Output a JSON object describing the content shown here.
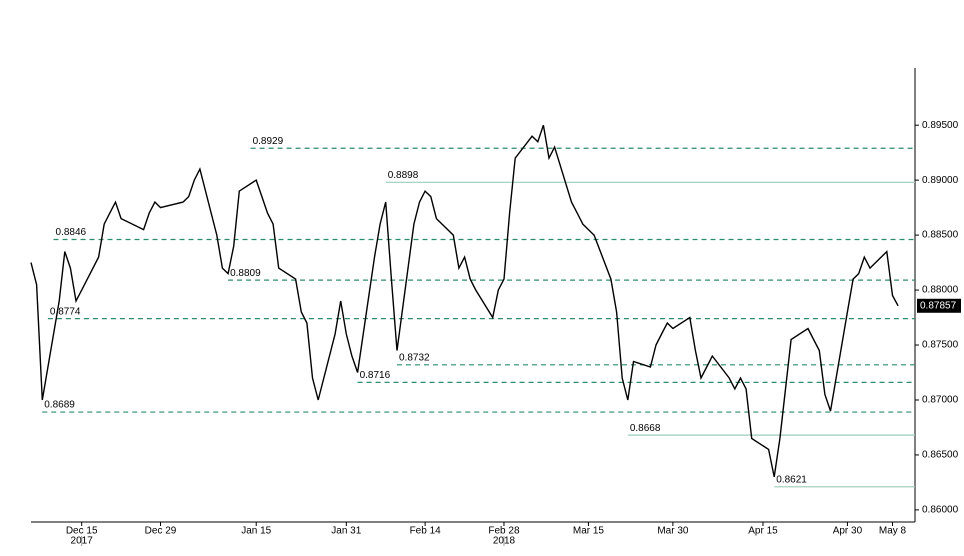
{
  "chart_data": {
    "type": "line",
    "series": [
      {
        "color": "#000000",
        "x": [
          "2017-12-06",
          "2017-12-07",
          "2017-12-08",
          "2017-12-11",
          "2017-12-12",
          "2017-12-13",
          "2017-12-14",
          "2017-12-15",
          "2017-12-18",
          "2017-12-19",
          "2017-12-20",
          "2017-12-21",
          "2017-12-22",
          "2017-12-26",
          "2017-12-27",
          "2017-12-28",
          "2017-12-29",
          "2018-01-02",
          "2018-01-03",
          "2018-01-04",
          "2018-01-05",
          "2018-01-08",
          "2018-01-09",
          "2018-01-10",
          "2018-01-11",
          "2018-01-12",
          "2018-01-15",
          "2018-01-16",
          "2018-01-17",
          "2018-01-18",
          "2018-01-19",
          "2018-01-22",
          "2018-01-23",
          "2018-01-24",
          "2018-01-25",
          "2018-01-26",
          "2018-01-29",
          "2018-01-30",
          "2018-01-31",
          "2018-02-01",
          "2018-02-02",
          "2018-02-05",
          "2018-02-06",
          "2018-02-07",
          "2018-02-08",
          "2018-02-09",
          "2018-02-12",
          "2018-02-13",
          "2018-02-14",
          "2018-02-15",
          "2018-02-16",
          "2018-02-19",
          "2018-02-20",
          "2018-02-21",
          "2018-02-22",
          "2018-02-23",
          "2018-02-26",
          "2018-02-27",
          "2018-02-28",
          "2018-03-01",
          "2018-03-02",
          "2018-03-05",
          "2018-03-06",
          "2018-03-07",
          "2018-03-08",
          "2018-03-09",
          "2018-03-12",
          "2018-03-13",
          "2018-03-14",
          "2018-03-15",
          "2018-03-16",
          "2018-03-19",
          "2018-03-20",
          "2018-03-21",
          "2018-03-22",
          "2018-03-23",
          "2018-03-26",
          "2018-03-27",
          "2018-03-28",
          "2018-03-29",
          "2018-03-30",
          "2018-04-02",
          "2018-04-03",
          "2018-04-04",
          "2018-04-05",
          "2018-04-06",
          "2018-04-09",
          "2018-04-10",
          "2018-04-11",
          "2018-04-12",
          "2018-04-13",
          "2018-04-16",
          "2018-04-17",
          "2018-04-18",
          "2018-04-19",
          "2018-04-20",
          "2018-04-23",
          "2018-04-24",
          "2018-04-25",
          "2018-04-26",
          "2018-04-27",
          "2018-04-30",
          "2018-05-01",
          "2018-05-02",
          "2018-05-03",
          "2018-05-04",
          "2018-05-07",
          "2018-05-08",
          "2018-05-09"
        ],
        "values": [
          0.8825,
          0.8805,
          0.87,
          0.879,
          0.8835,
          0.882,
          0.879,
          0.88,
          0.883,
          0.886,
          0.887,
          0.888,
          0.8865,
          0.8855,
          0.887,
          0.888,
          0.8875,
          0.888,
          0.8885,
          0.89,
          0.891,
          0.885,
          0.882,
          0.8815,
          0.884,
          0.889,
          0.89,
          0.8885,
          0.887,
          0.886,
          0.882,
          0.881,
          0.878,
          0.877,
          0.872,
          0.87,
          0.876,
          0.879,
          0.876,
          0.874,
          0.8725,
          0.883,
          0.886,
          0.888,
          0.881,
          0.8745,
          0.886,
          0.888,
          0.889,
          0.8885,
          0.8865,
          0.885,
          0.882,
          0.883,
          0.881,
          0.88,
          0.8775,
          0.88,
          0.881,
          0.887,
          0.892,
          0.894,
          0.8935,
          0.895,
          0.892,
          0.893,
          0.888,
          0.887,
          0.886,
          0.8855,
          0.885,
          0.881,
          0.878,
          0.872,
          0.87,
          0.8735,
          0.873,
          0.875,
          0.876,
          0.877,
          0.8765,
          0.8775,
          0.8745,
          0.872,
          0.873,
          0.874,
          0.872,
          0.871,
          0.872,
          0.871,
          0.8665,
          0.8655,
          0.863,
          0.8665,
          0.871,
          0.8755,
          0.8765,
          0.8755,
          0.8745,
          0.8705,
          0.869,
          0.878,
          0.881,
          0.8815,
          0.883,
          0.882,
          0.8835,
          0.8795,
          0.87857
        ]
      }
    ],
    "last_value": 0.87857,
    "levels": [
      {
        "value": 0.8929,
        "date": "2018-01-14",
        "style": "dashed"
      },
      {
        "value": 0.8898,
        "date": "2018-02-07",
        "style": "solid"
      },
      {
        "value": 0.8846,
        "date": "2017-12-10",
        "style": "dashed"
      },
      {
        "value": 0.8809,
        "date": "2018-01-10",
        "style": "dashed"
      },
      {
        "value": 0.8774,
        "date": "2017-12-09",
        "style": "dashed"
      },
      {
        "value": 0.8732,
        "date": "2018-02-09",
        "style": "dashed"
      },
      {
        "value": 0.8716,
        "date": "2018-02-02",
        "style": "dashed"
      },
      {
        "value": 0.8689,
        "date": "2017-12-08",
        "style": "dashed"
      },
      {
        "value": 0.8668,
        "date": "2018-03-22",
        "style": "solid"
      },
      {
        "value": 0.8621,
        "date": "2018-04-17",
        "style": "solid"
      }
    ],
    "level_colors": {
      "dashed": "#2e8b6e",
      "solid": "#9ccbb8"
    },
    "xlim": [
      "2017-12-06",
      "2018-05-12"
    ],
    "xticks": [
      {
        "value": "2017-12-15",
        "label": "Dec 15"
      },
      {
        "value": "2017-12-29",
        "label": "Dec 29"
      },
      {
        "value": "2018-01-15",
        "label": "Jan 15"
      },
      {
        "value": "2018-01-31",
        "label": "Jan 31"
      },
      {
        "value": "2018-02-14",
        "label": "Feb 14"
      },
      {
        "value": "2018-02-28",
        "label": "Feb 28"
      },
      {
        "value": "2018-03-15",
        "label": "Mar 15"
      },
      {
        "value": "2018-03-30",
        "label": "Mar 30"
      },
      {
        "value": "2018-04-15",
        "label": "Apr 15"
      },
      {
        "value": "2018-04-30",
        "label": "Apr 30"
      },
      {
        "value": "2018-05-08",
        "label": "May 8"
      }
    ],
    "year_labels": [
      {
        "value": "2017-12-15",
        "label": "2017"
      },
      {
        "value": "2018-02-28",
        "label": "2018"
      }
    ],
    "ylim": [
      0.8589,
      0.9002
    ],
    "yticks": [
      {
        "value": 0.86,
        "label": "0.86000"
      },
      {
        "value": 0.865,
        "label": "0.86500"
      },
      {
        "value": 0.87,
        "label": "0.87000"
      },
      {
        "value": 0.875,
        "label": "0.87500"
      },
      {
        "value": 0.88,
        "label": "0.88000"
      },
      {
        "value": 0.885,
        "label": "0.88500"
      },
      {
        "value": 0.89,
        "label": "0.89000"
      },
      {
        "value": 0.895,
        "label": "0.89500"
      }
    ]
  }
}
